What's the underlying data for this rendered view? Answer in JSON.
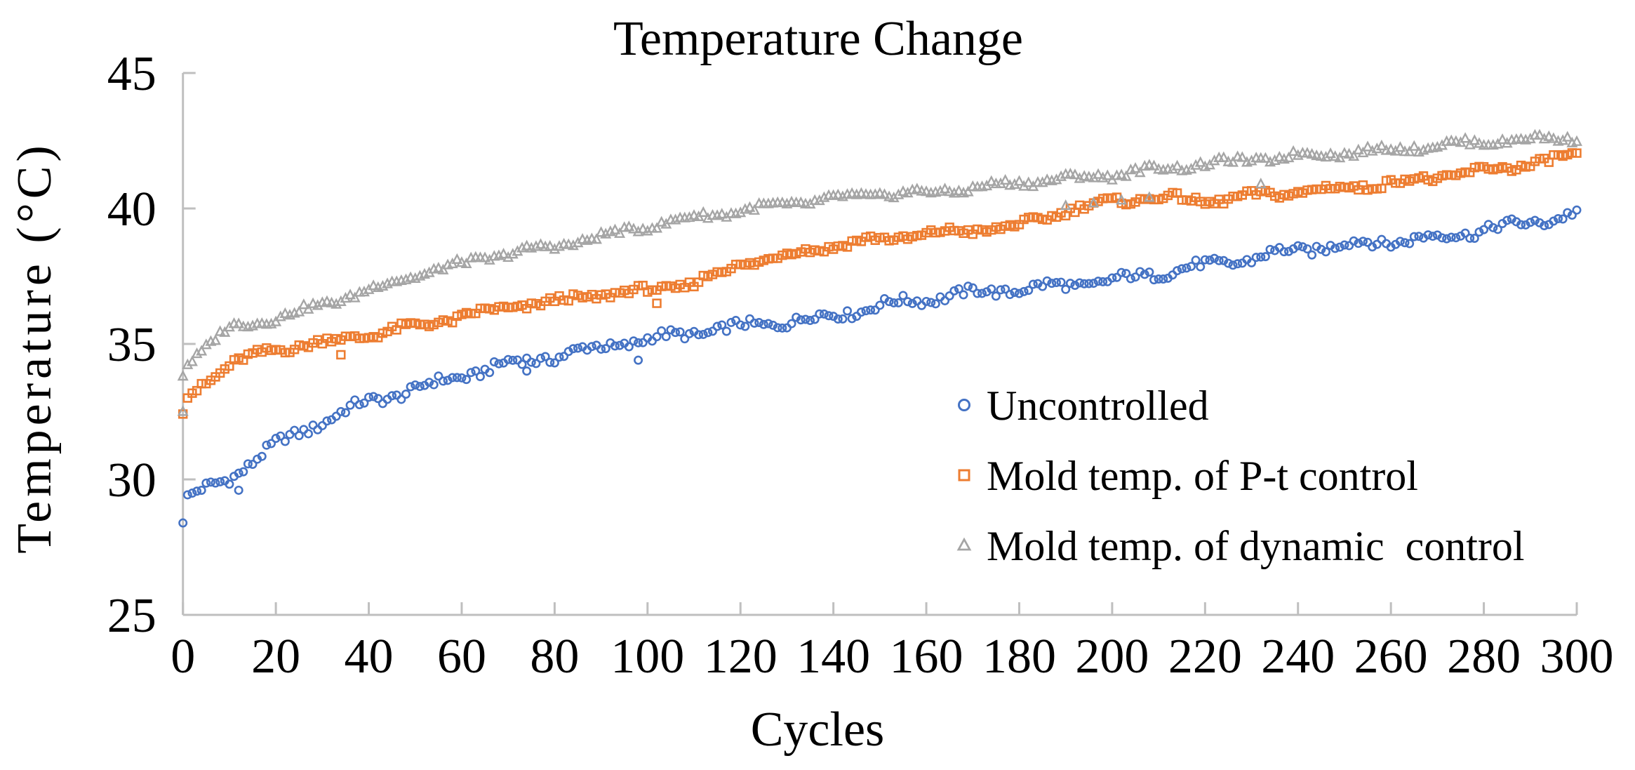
{
  "chart_data": {
    "type": "scatter",
    "title": "Temperature Change",
    "xlabel": "Cycles",
    "ylabel": "Temperature (°C)",
    "x_axis": {
      "min": 0,
      "max": 300,
      "tick_step": 20,
      "ticks": [
        0,
        20,
        40,
        60,
        80,
        100,
        120,
        140,
        160,
        180,
        200,
        220,
        240,
        260,
        280,
        300
      ]
    },
    "y_axis": {
      "min": 25,
      "max": 45,
      "tick_step": 5,
      "ticks": [
        25,
        30,
        35,
        40,
        45
      ]
    },
    "grid": false,
    "legend_position": "inside-right-middle",
    "colors": {
      "axis": "#BFBFBF",
      "text": "#000000",
      "background": "#FFFFFF"
    },
    "series": [
      {
        "name": "Uncontrolled",
        "marker": "circle",
        "color": "#4472C4",
        "noise_band": 0.26,
        "anchor_points": [
          [
            0,
            28.5
          ],
          [
            1,
            29.3
          ],
          [
            10,
            30.0
          ],
          [
            20,
            31.2
          ],
          [
            30,
            32.1
          ],
          [
            40,
            32.9
          ],
          [
            50,
            33.4
          ],
          [
            60,
            33.9
          ],
          [
            70,
            34.3
          ],
          [
            80,
            34.5
          ],
          [
            90,
            34.8
          ],
          [
            100,
            35.1
          ],
          [
            110,
            35.4
          ],
          [
            120,
            35.7
          ],
          [
            130,
            35.9
          ],
          [
            140,
            36.1
          ],
          [
            150,
            36.4
          ],
          [
            160,
            36.6
          ],
          [
            170,
            36.8
          ],
          [
            180,
            37.0
          ],
          [
            190,
            37.2
          ],
          [
            200,
            37.4
          ],
          [
            210,
            37.7
          ],
          [
            220,
            37.9
          ],
          [
            230,
            38.1
          ],
          [
            240,
            38.4
          ],
          [
            250,
            38.6
          ],
          [
            260,
            38.8
          ],
          [
            270,
            39.0
          ],
          [
            280,
            39.3
          ],
          [
            290,
            39.5
          ],
          [
            300,
            39.8
          ]
        ],
        "outliers": [
          [
            12,
            29.6
          ],
          [
            98,
            34.4
          ],
          [
            74,
            34.0
          ]
        ]
      },
      {
        "name": "Mold temp. of P-t control",
        "marker": "square",
        "color": "#ED7D31",
        "noise_band": 0.2,
        "anchor_points": [
          [
            0,
            32.4
          ],
          [
            1,
            33.0
          ],
          [
            10,
            34.2
          ],
          [
            20,
            34.8
          ],
          [
            30,
            35.1
          ],
          [
            40,
            35.4
          ],
          [
            50,
            35.7
          ],
          [
            60,
            36.0
          ],
          [
            70,
            36.3
          ],
          [
            80,
            36.5
          ],
          [
            90,
            36.8
          ],
          [
            100,
            37.0
          ],
          [
            110,
            37.3
          ],
          [
            120,
            38.0
          ],
          [
            130,
            38.3
          ],
          [
            140,
            38.6
          ],
          [
            150,
            38.8
          ],
          [
            160,
            39.0
          ],
          [
            170,
            39.2
          ],
          [
            180,
            39.4
          ],
          [
            190,
            40.0
          ],
          [
            200,
            40.3
          ],
          [
            210,
            40.4
          ],
          [
            220,
            40.2
          ],
          [
            230,
            40.4
          ],
          [
            240,
            40.6
          ],
          [
            250,
            40.8
          ],
          [
            260,
            41.0
          ],
          [
            270,
            41.2
          ],
          [
            280,
            41.4
          ],
          [
            290,
            41.6
          ],
          [
            300,
            41.9
          ]
        ],
        "outliers": [
          [
            102,
            36.5
          ],
          [
            34,
            34.6
          ]
        ]
      },
      {
        "name": "Mold temp. of dynamic  control",
        "marker": "triangle",
        "color": "#A5A5A5",
        "noise_band": 0.18,
        "anchor_points": [
          [
            0,
            33.9
          ],
          [
            1,
            34.3
          ],
          [
            10,
            35.6
          ],
          [
            20,
            36.0
          ],
          [
            30,
            36.5
          ],
          [
            40,
            37.0
          ],
          [
            50,
            37.5
          ],
          [
            60,
            37.9
          ],
          [
            70,
            38.3
          ],
          [
            80,
            38.6
          ],
          [
            90,
            39.0
          ],
          [
            100,
            39.4
          ],
          [
            110,
            39.7
          ],
          [
            120,
            39.9
          ],
          [
            130,
            40.1
          ],
          [
            140,
            40.3
          ],
          [
            150,
            40.5
          ],
          [
            160,
            40.6
          ],
          [
            170,
            40.8
          ],
          [
            180,
            41.0
          ],
          [
            190,
            41.1
          ],
          [
            200,
            41.2
          ],
          [
            210,
            41.4
          ],
          [
            220,
            41.6
          ],
          [
            230,
            41.8
          ],
          [
            240,
            42.0
          ],
          [
            250,
            42.1
          ],
          [
            260,
            42.2
          ],
          [
            270,
            42.3
          ],
          [
            280,
            42.4
          ],
          [
            290,
            42.5
          ],
          [
            300,
            42.6
          ]
        ],
        "outliers": [
          [
            0,
            32.5
          ],
          [
            190,
            40.1
          ],
          [
            196,
            40.2
          ],
          [
            202,
            40.3
          ],
          [
            208,
            40.4
          ],
          [
            232,
            40.9
          ]
        ]
      }
    ]
  }
}
